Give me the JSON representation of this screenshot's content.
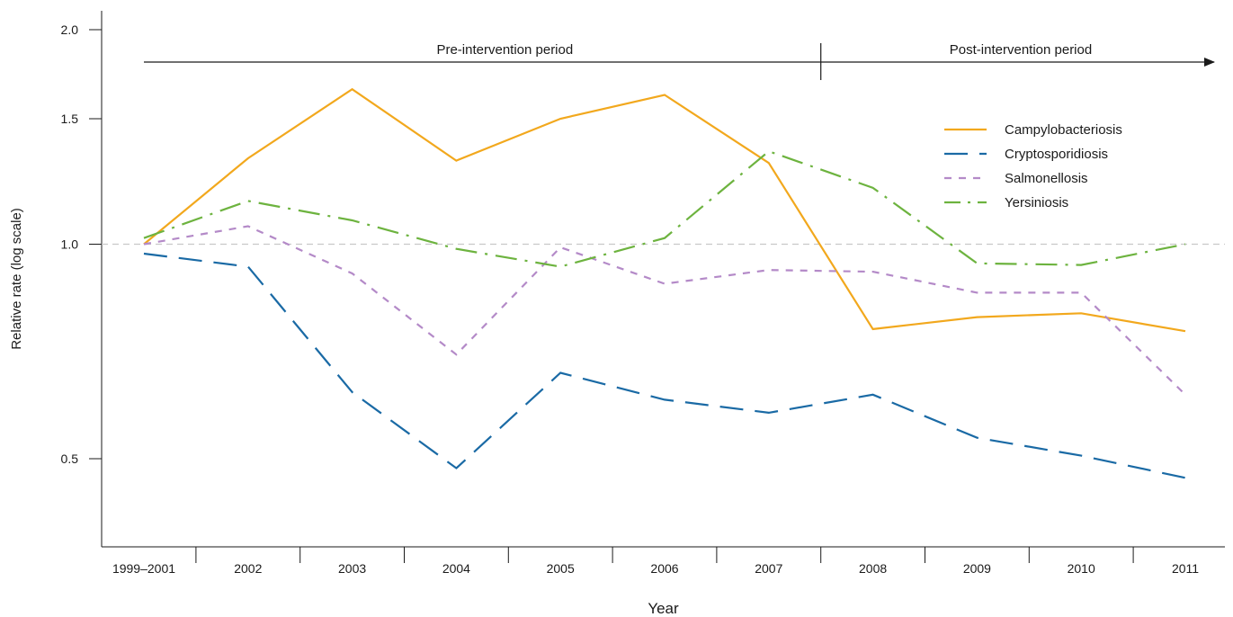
{
  "chart_data": {
    "type": "line",
    "xlabel": "Year",
    "ylabel": "Relative rate (log scale)",
    "yscale": "log",
    "ylim": [
      0.42,
      2.0
    ],
    "yticks": [
      {
        "value": 2.0,
        "label": "2.0"
      },
      {
        "value": 1.5,
        "label": "1.5"
      },
      {
        "value": 1.0,
        "label": "1.0"
      },
      {
        "value": 0.5,
        "label": "0.5"
      }
    ],
    "reference_line": {
      "value": 1.0,
      "style": "dashed",
      "color": "#c8c8c8"
    },
    "categories": [
      "1999–2001",
      "2002",
      "2003",
      "2004",
      "2005",
      "2006",
      "2007",
      "2008",
      "2009",
      "2010",
      "2011"
    ],
    "periods": [
      {
        "label": "Pre-intervention period",
        "from": "1999–2001",
        "to": "2007"
      },
      {
        "label": "Post-intervention period",
        "from": "2007",
        "to": "2011"
      }
    ],
    "legend_position": "top-right",
    "grid": false,
    "series": [
      {
        "name": "Campylobacteriosis",
        "color": "#f2a81d",
        "dash": "solid",
        "values": [
          1.0,
          1.32,
          1.65,
          1.31,
          1.5,
          1.62,
          1.3,
          0.76,
          0.79,
          0.8,
          0.755
        ]
      },
      {
        "name": "Cryptosporidiosis",
        "color": "#1a6aa5",
        "dash": "long",
        "values": [
          0.97,
          0.93,
          0.62,
          0.485,
          0.66,
          0.605,
          0.58,
          0.615,
          0.535,
          0.505,
          0.47
        ]
      },
      {
        "name": "Salmonellosis",
        "color": "#b48ac8",
        "dash": "short",
        "values": [
          1.0,
          1.06,
          0.91,
          0.7,
          0.99,
          0.88,
          0.92,
          0.915,
          0.855,
          0.855,
          0.615
        ]
      },
      {
        "name": "Yersiniosis",
        "color": "#6db33f",
        "dash": "dashdot",
        "values": [
          1.02,
          1.15,
          1.08,
          0.985,
          0.93,
          1.02,
          1.35,
          1.2,
          0.94,
          0.935,
          1.0
        ]
      }
    ]
  }
}
